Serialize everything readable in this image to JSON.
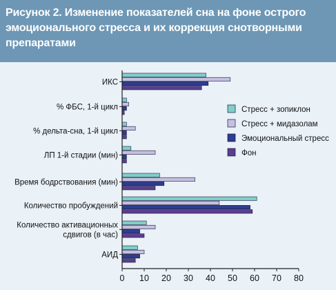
{
  "figure": {
    "title": "Рисунок 2. Изменение показателей сна на фоне острого эмоционального стресса и их коррекция снотворными препаратами"
  },
  "chart_data": {
    "type": "bar",
    "orientation": "horizontal",
    "title": "Рисунок 2. Изменение показателей сна на фоне острого эмоционального стресса и их коррекция снотворными препаратами",
    "xlabel": "",
    "ylabel": "",
    "xlim": [
      0,
      80
    ],
    "xticks": [
      0,
      10,
      20,
      30,
      40,
      50,
      60,
      70,
      80
    ],
    "grid": false,
    "legend_position": "right",
    "categories": [
      "ИКС",
      "% ФБС, 1-й цикл",
      "% дельта-сна, 1-й цикл",
      "ЛП 1-й стадии (мин)",
      "Время бодрствования (мин)",
      "Количество пробуждений",
      "Количество активационных сдвигов (в час)",
      "АИД"
    ],
    "category_lines": [
      [
        "ИКС"
      ],
      [
        "% ФБС, 1-й цикл"
      ],
      [
        "% дельта-сна, 1-й цикл"
      ],
      [
        "ЛП 1-й стадии (мин)"
      ],
      [
        "Время бодрствования (мин)"
      ],
      [
        "Количество пробуждений"
      ],
      [
        "Количество активационных",
        "сдвигов (в час)"
      ],
      [
        "АИД"
      ]
    ],
    "series": [
      {
        "name": "Стресс + зопиклон",
        "color": "#7fcfc9",
        "values": [
          38,
          2,
          2,
          4,
          17,
          61,
          11,
          7
        ]
      },
      {
        "name": "Стресс + мидазолам",
        "color": "#c6c0e0",
        "values": [
          49,
          3,
          6,
          15,
          33,
          44,
          15,
          10
        ]
      },
      {
        "name": "Эмоциональный стресс",
        "color": "#2e3d8f",
        "values": [
          39,
          2,
          2,
          2,
          19,
          58,
          8,
          8
        ]
      },
      {
        "name": "Фон",
        "color": "#5a3f8e",
        "values": [
          36,
          1,
          2,
          2,
          15,
          59,
          10,
          6
        ]
      }
    ]
  },
  "colors": {
    "title_band": "#6d97b5",
    "plot_background": "#eaf1f7",
    "bar_outline": "#1b1b3a",
    "axis": "#222222"
  }
}
